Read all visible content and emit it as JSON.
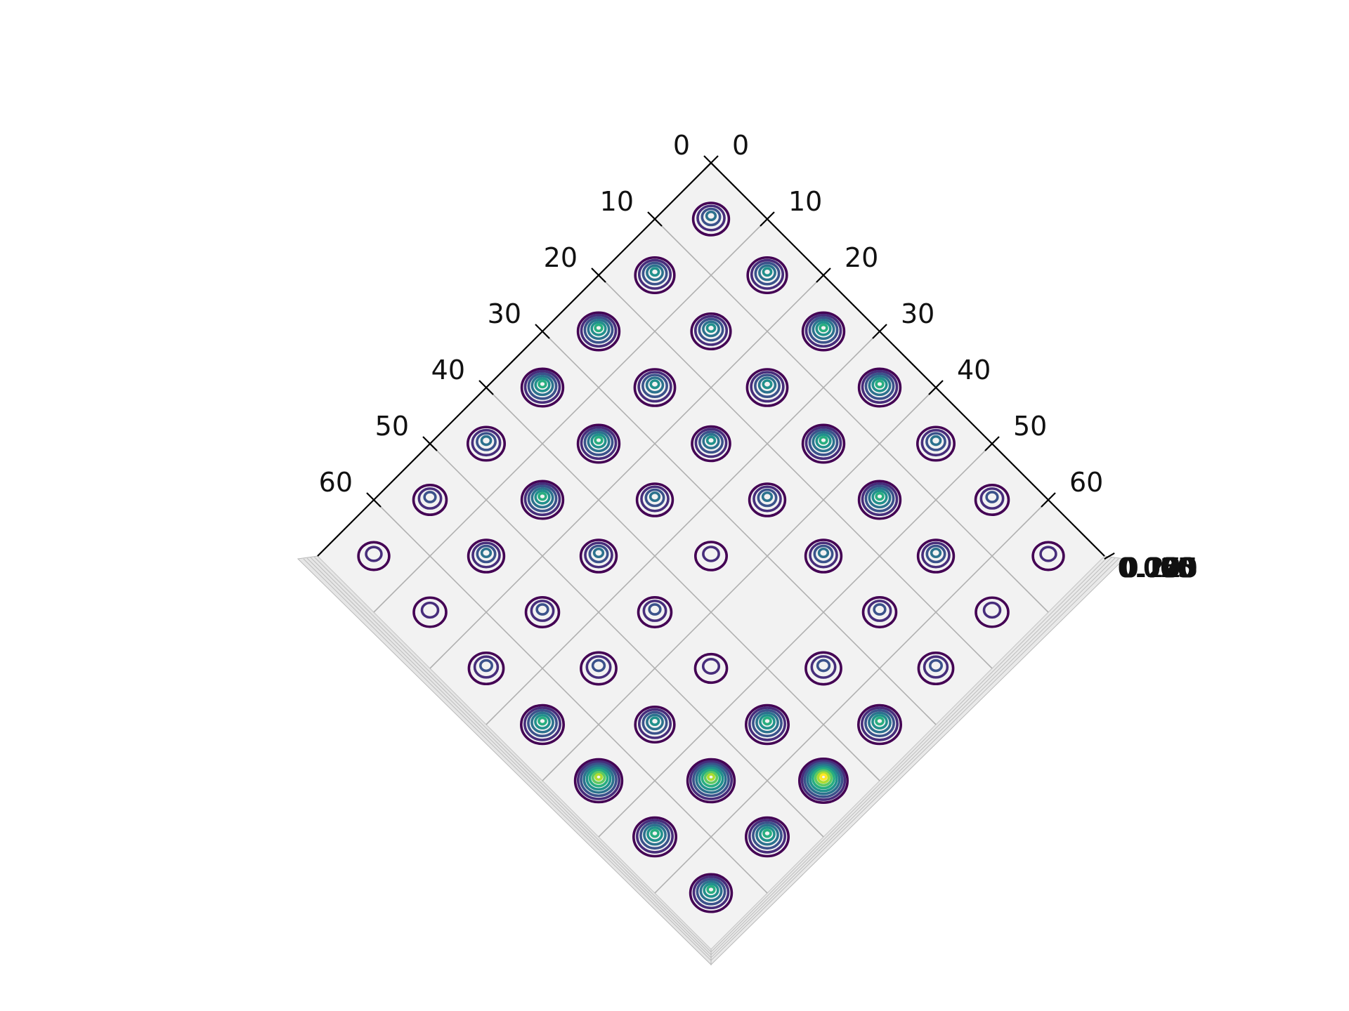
{
  "chart_data": {
    "type": "contour",
    "title": "",
    "xlabel": "",
    "ylabel": "",
    "zlabel": "",
    "x_ticks": [
      0,
      10,
      20,
      30,
      40,
      50,
      60
    ],
    "y_ticks": [
      0,
      10,
      20,
      30,
      40,
      50,
      60
    ],
    "x_tick_labels": [
      "0",
      "10",
      "20",
      "30",
      "40",
      "50",
      "60"
    ],
    "y_tick_labels": [
      "0",
      "10",
      "20",
      "30",
      "40",
      "50",
      "60"
    ],
    "z_tick_labels": [
      "0.000",
      "0.025",
      "0.050",
      "0.075",
      "0.100",
      "0.125",
      "0.150",
      "0.175",
      "0.200",
      "0.225"
    ],
    "xlim": [
      0,
      70
    ],
    "ylim": [
      0,
      70
    ],
    "grid": true,
    "colormap": "viridis",
    "colormap_stops": [
      "#440154",
      "#472d7b",
      "#3b528b",
      "#2c728e",
      "#21918c",
      "#28ae80",
      "#5ec962",
      "#addc30",
      "#fde725"
    ],
    "pane_color": "#f2f2f2",
    "grid_color": "#b0b0b0",
    "peaks": [
      {
        "x": 5,
        "y": 5,
        "h": 0.4
      },
      {
        "x": 5,
        "y": 15,
        "h": 0.55
      },
      {
        "x": 15,
        "y": 5,
        "h": 0.55
      },
      {
        "x": 5,
        "y": 25,
        "h": 0.65
      },
      {
        "x": 15,
        "y": 15,
        "h": 0.55
      },
      {
        "x": 25,
        "y": 5,
        "h": 0.65
      },
      {
        "x": 5,
        "y": 35,
        "h": 0.65
      },
      {
        "x": 15,
        "y": 25,
        "h": 0.6
      },
      {
        "x": 25,
        "y": 15,
        "h": 0.6
      },
      {
        "x": 35,
        "y": 5,
        "h": 0.65
      },
      {
        "x": 5,
        "y": 45,
        "h": 0.45
      },
      {
        "x": 15,
        "y": 35,
        "h": 0.65
      },
      {
        "x": 25,
        "y": 25,
        "h": 0.5
      },
      {
        "x": 35,
        "y": 15,
        "h": 0.65
      },
      {
        "x": 45,
        "y": 5,
        "h": 0.45
      },
      {
        "x": 5,
        "y": 55,
        "h": 0.28
      },
      {
        "x": 15,
        "y": 45,
        "h": 0.65
      },
      {
        "x": 25,
        "y": 35,
        "h": 0.4
      },
      {
        "x": 35,
        "y": 25,
        "h": 0.4
      },
      {
        "x": 45,
        "y": 15,
        "h": 0.65
      },
      {
        "x": 55,
        "y": 5,
        "h": 0.28
      },
      {
        "x": 5,
        "y": 65,
        "h": 0.18
      },
      {
        "x": 15,
        "y": 55,
        "h": 0.4
      },
      {
        "x": 25,
        "y": 45,
        "h": 0.4
      },
      {
        "x": 35,
        "y": 35,
        "h": 0.2
      },
      {
        "x": 45,
        "y": 25,
        "h": 0.4
      },
      {
        "x": 55,
        "y": 15,
        "h": 0.4
      },
      {
        "x": 65,
        "y": 5,
        "h": 0.18
      },
      {
        "x": 15,
        "y": 65,
        "h": 0.25
      },
      {
        "x": 25,
        "y": 55,
        "h": 0.28
      },
      {
        "x": 45,
        "y": 35,
        "h": 0.28
      },
      {
        "x": 55,
        "y": 25,
        "h": 0.28
      },
      {
        "x": 65,
        "y": 15,
        "h": 0.25
      },
      {
        "x": 25,
        "y": 65,
        "h": 0.35
      },
      {
        "x": 35,
        "y": 55,
        "h": 0.38
      },
      {
        "x": 45,
        "y": 45,
        "h": 0.22
      },
      {
        "x": 55,
        "y": 35,
        "h": 0.38
      },
      {
        "x": 65,
        "y": 25,
        "h": 0.35
      },
      {
        "x": 35,
        "y": 65,
        "h": 0.7
      },
      {
        "x": 45,
        "y": 55,
        "h": 0.7
      },
      {
        "x": 55,
        "y": 45,
        "h": 0.55
      },
      {
        "x": 65,
        "y": 35,
        "h": 0.7
      },
      {
        "x": 45,
        "y": 65,
        "h": 0.95
      },
      {
        "x": 55,
        "y": 55,
        "h": 0.9
      },
      {
        "x": 65,
        "y": 45,
        "h": 0.9
      },
      {
        "x": 55,
        "y": 65,
        "h": 0.7
      },
      {
        "x": 65,
        "y": 55,
        "h": 0.7
      },
      {
        "x": 65,
        "y": 65,
        "h": 0.65
      }
    ]
  }
}
